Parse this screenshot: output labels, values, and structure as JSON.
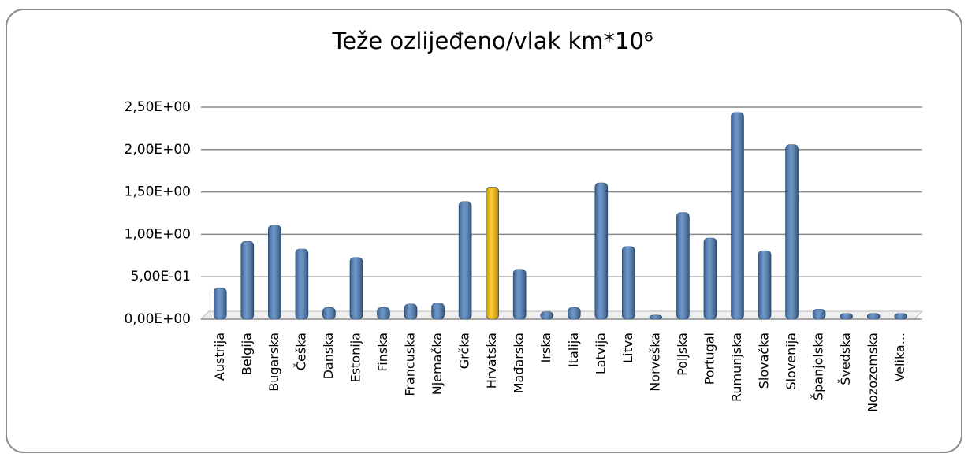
{
  "chart_data": {
    "type": "bar",
    "title": "Teže ozlijeđeno/vlak km*10⁶",
    "categories": [
      "Austrija",
      "Belgija",
      "Bugarska",
      "Češka",
      "Danska",
      "Estonija",
      "Finska",
      "Francuska",
      "Njemačka",
      "Grčka",
      "Hrvatska",
      "Mađarska",
      "Irska",
      "Italija",
      "Latvija",
      "Litva",
      "Norveška",
      "Poljska",
      "Portugal",
      "Rumunjska",
      "Slovačka",
      "Slovenija",
      "Španjolska",
      "Švedska",
      "Nozozemska",
      "Velika..."
    ],
    "values": [
      0.33,
      0.88,
      1.07,
      0.79,
      0.1,
      0.69,
      0.1,
      0.14,
      0.15,
      1.35,
      1.52,
      0.55,
      0.05,
      0.1,
      1.57,
      0.82,
      0.01,
      1.22,
      0.92,
      2.4,
      0.77,
      2.02,
      0.08,
      0.03,
      0.03,
      0.03
    ],
    "colors": [
      "#4a7ebb",
      "#4a7ebb",
      "#4a7ebb",
      "#4a7ebb",
      "#4a7ebb",
      "#4a7ebb",
      "#4a7ebb",
      "#4a7ebb",
      "#4a7ebb",
      "#4a7ebb",
      "#ffc000",
      "#4a7ebb",
      "#4a7ebb",
      "#4a7ebb",
      "#4a7ebb",
      "#4a7ebb",
      "#4a7ebb",
      "#4a7ebb",
      "#4a7ebb",
      "#4a7ebb",
      "#4a7ebb",
      "#4a7ebb",
      "#4a7ebb",
      "#4a7ebb",
      "#4a7ebb",
      "#4a7ebb"
    ],
    "ylim": [
      0,
      2.5
    ],
    "yticks": [
      {
        "value": 0,
        "label": "0,00E+00"
      },
      {
        "value": 0.5,
        "label": "5,00E-01"
      },
      {
        "value": 1,
        "label": "1,00E+00"
      },
      {
        "value": 1.5,
        "label": "1,50E+00"
      },
      {
        "value": 2,
        "label": "2,00E+00"
      },
      {
        "value": 2.5,
        "label": "2,50E+00"
      }
    ],
    "grid": true
  }
}
